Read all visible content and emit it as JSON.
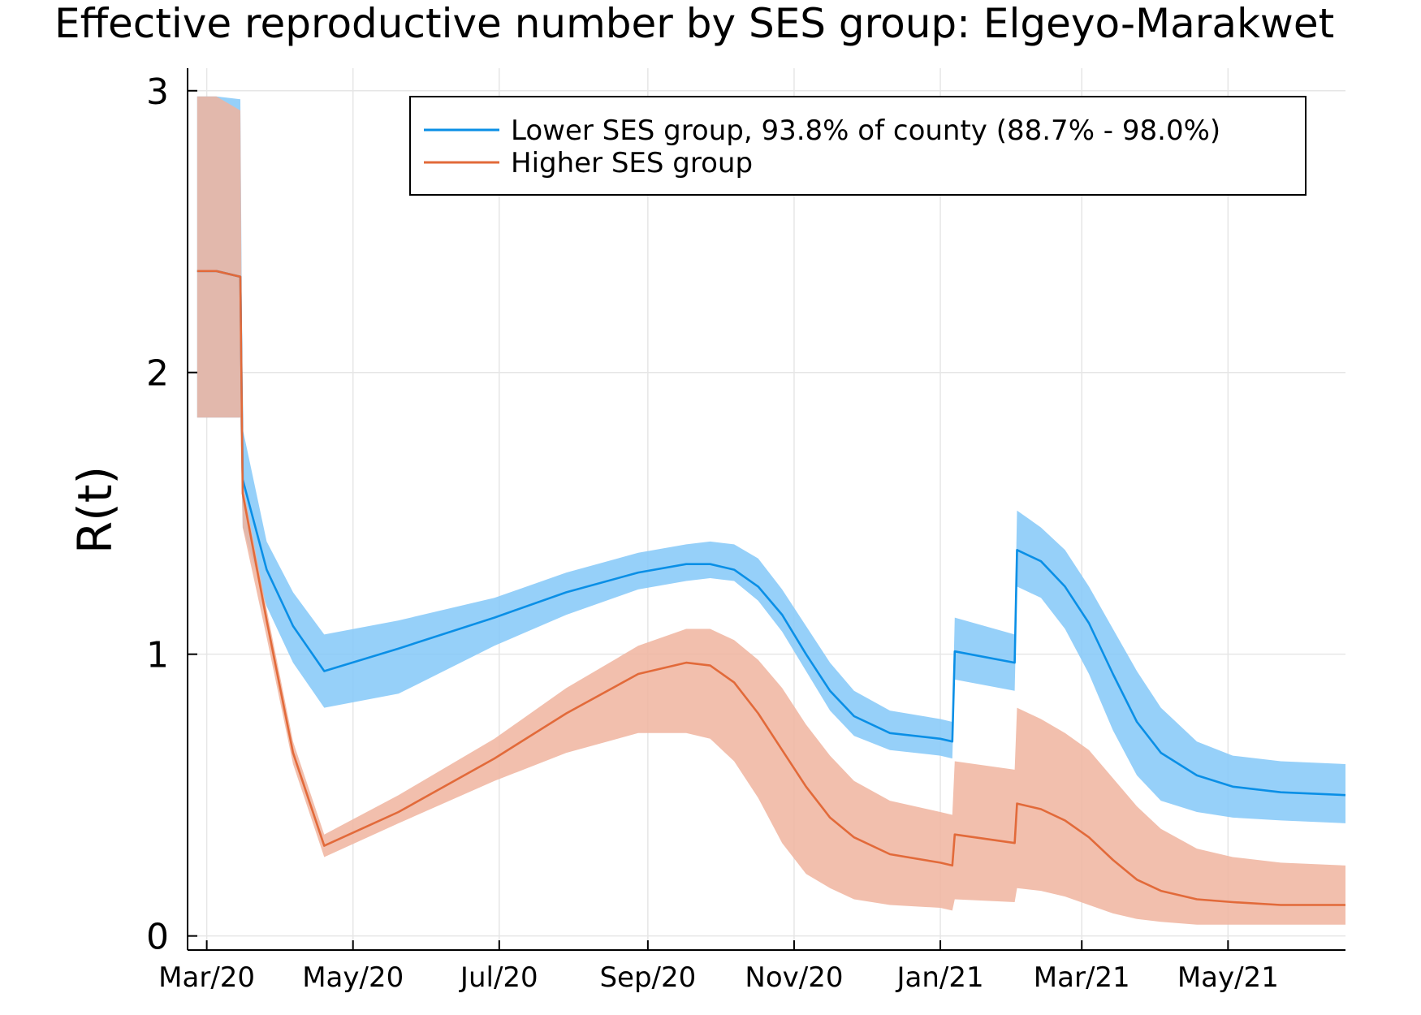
{
  "chart_data": {
    "type": "line",
    "title": "Effective reproductive number by SES group: Elgeyo-Marakwet",
    "xlabel": "",
    "ylabel": "R(t)",
    "xlim": [
      "2020-02-22",
      "2021-06-19"
    ],
    "ylim": [
      -0.05,
      3.08
    ],
    "grid": true,
    "legend_position": "top-right",
    "x_ticks": [
      {
        "date": "2020-03-01",
        "label": "Mar/20"
      },
      {
        "date": "2020-05-01",
        "label": "May/20"
      },
      {
        "date": "2020-07-01",
        "label": "Jul/20"
      },
      {
        "date": "2020-09-01",
        "label": "Sep/20"
      },
      {
        "date": "2020-11-01",
        "label": "Nov/20"
      },
      {
        "date": "2021-01-01",
        "label": "Jan/21"
      },
      {
        "date": "2021-03-01",
        "label": "Mar/21"
      },
      {
        "date": "2021-05-01",
        "label": "May/21"
      }
    ],
    "y_ticks": [
      {
        "value": 0,
        "label": "0"
      },
      {
        "value": 1,
        "label": "1"
      },
      {
        "value": 2,
        "label": "2"
      },
      {
        "value": 3,
        "label": "3"
      }
    ],
    "series": [
      {
        "name": "Lower SES group, 93.8% of county (88.7% - 98.0%)",
        "color": "#0a8fe6",
        "band_color": "#84c8f8",
        "points": [
          [
            "2020-02-26",
            2.36,
            1.84,
            2.98
          ],
          [
            "2020-03-05",
            2.36,
            1.84,
            2.98
          ],
          [
            "2020-03-15",
            2.34,
            1.84,
            2.97
          ],
          [
            "2020-03-16",
            1.62,
            1.45,
            1.8
          ],
          [
            "2020-03-26",
            1.3,
            1.17,
            1.4
          ],
          [
            "2020-04-06",
            1.1,
            0.97,
            1.22
          ],
          [
            "2020-04-19",
            0.94,
            0.81,
            1.07
          ],
          [
            "2020-05-20",
            1.02,
            0.86,
            1.12
          ],
          [
            "2020-06-29",
            1.13,
            1.03,
            1.2
          ],
          [
            "2020-07-29",
            1.22,
            1.14,
            1.29
          ],
          [
            "2020-08-28",
            1.29,
            1.23,
            1.36
          ],
          [
            "2020-09-17",
            1.32,
            1.26,
            1.39
          ],
          [
            "2020-09-27",
            1.32,
            1.27,
            1.4
          ],
          [
            "2020-10-07",
            1.3,
            1.26,
            1.39
          ],
          [
            "2020-10-17",
            1.24,
            1.19,
            1.34
          ],
          [
            "2020-10-27",
            1.14,
            1.08,
            1.23
          ],
          [
            "2020-11-06",
            1.0,
            0.94,
            1.1
          ],
          [
            "2020-11-16",
            0.87,
            0.8,
            0.97
          ],
          [
            "2020-11-26",
            0.78,
            0.71,
            0.87
          ],
          [
            "2020-12-11",
            0.72,
            0.66,
            0.8
          ],
          [
            "2021-01-01",
            0.7,
            0.64,
            0.77
          ],
          [
            "2021-01-06",
            0.69,
            0.63,
            0.76
          ],
          [
            "2021-01-07",
            1.01,
            0.91,
            1.13
          ],
          [
            "2021-02-01",
            0.97,
            0.87,
            1.07
          ],
          [
            "2021-02-02",
            1.37,
            1.24,
            1.51
          ],
          [
            "2021-02-12",
            1.33,
            1.2,
            1.45
          ],
          [
            "2021-02-22",
            1.24,
            1.09,
            1.37
          ],
          [
            "2021-03-04",
            1.11,
            0.93,
            1.24
          ],
          [
            "2021-03-14",
            0.93,
            0.73,
            1.09
          ],
          [
            "2021-03-24",
            0.76,
            0.57,
            0.94
          ],
          [
            "2021-04-03",
            0.65,
            0.48,
            0.81
          ],
          [
            "2021-04-18",
            0.57,
            0.44,
            0.69
          ],
          [
            "2021-05-03",
            0.53,
            0.42,
            0.64
          ],
          [
            "2021-05-23",
            0.51,
            0.41,
            0.62
          ],
          [
            "2021-06-19",
            0.5,
            0.4,
            0.61
          ]
        ]
      },
      {
        "name": "Higher SES group",
        "color": "#e26a3a",
        "band_color": "#f0b49f",
        "points": [
          [
            "2020-02-26",
            2.36,
            1.84,
            2.98
          ],
          [
            "2020-03-05",
            2.36,
            1.84,
            2.98
          ],
          [
            "2020-03-15",
            2.34,
            1.84,
            2.93
          ],
          [
            "2020-03-16",
            1.57,
            1.45,
            1.6
          ],
          [
            "2020-03-26",
            1.12,
            1.06,
            1.16
          ],
          [
            "2020-04-06",
            0.65,
            0.61,
            0.69
          ],
          [
            "2020-04-19",
            0.32,
            0.28,
            0.36
          ],
          [
            "2020-05-20",
            0.44,
            0.4,
            0.5
          ],
          [
            "2020-06-29",
            0.63,
            0.55,
            0.7
          ],
          [
            "2020-07-29",
            0.79,
            0.65,
            0.88
          ],
          [
            "2020-08-28",
            0.93,
            0.72,
            1.03
          ],
          [
            "2020-09-17",
            0.97,
            0.72,
            1.09
          ],
          [
            "2020-09-27",
            0.96,
            0.7,
            1.09
          ],
          [
            "2020-10-07",
            0.9,
            0.62,
            1.05
          ],
          [
            "2020-10-17",
            0.79,
            0.49,
            0.98
          ],
          [
            "2020-10-27",
            0.66,
            0.33,
            0.88
          ],
          [
            "2020-11-06",
            0.53,
            0.22,
            0.75
          ],
          [
            "2020-11-16",
            0.42,
            0.17,
            0.64
          ],
          [
            "2020-11-26",
            0.35,
            0.13,
            0.55
          ],
          [
            "2020-12-11",
            0.29,
            0.11,
            0.48
          ],
          [
            "2021-01-01",
            0.26,
            0.1,
            0.44
          ],
          [
            "2021-01-06",
            0.25,
            0.09,
            0.43
          ],
          [
            "2021-01-07",
            0.36,
            0.13,
            0.62
          ],
          [
            "2021-02-01",
            0.33,
            0.12,
            0.59
          ],
          [
            "2021-02-02",
            0.47,
            0.17,
            0.81
          ],
          [
            "2021-02-12",
            0.45,
            0.16,
            0.77
          ],
          [
            "2021-02-22",
            0.41,
            0.14,
            0.72
          ],
          [
            "2021-03-04",
            0.35,
            0.11,
            0.66
          ],
          [
            "2021-03-14",
            0.27,
            0.08,
            0.56
          ],
          [
            "2021-03-24",
            0.2,
            0.06,
            0.46
          ],
          [
            "2021-04-03",
            0.16,
            0.05,
            0.38
          ],
          [
            "2021-04-18",
            0.13,
            0.04,
            0.31
          ],
          [
            "2021-05-03",
            0.12,
            0.04,
            0.28
          ],
          [
            "2021-05-23",
            0.11,
            0.04,
            0.26
          ],
          [
            "2021-06-19",
            0.11,
            0.04,
            0.25
          ]
        ]
      }
    ]
  }
}
